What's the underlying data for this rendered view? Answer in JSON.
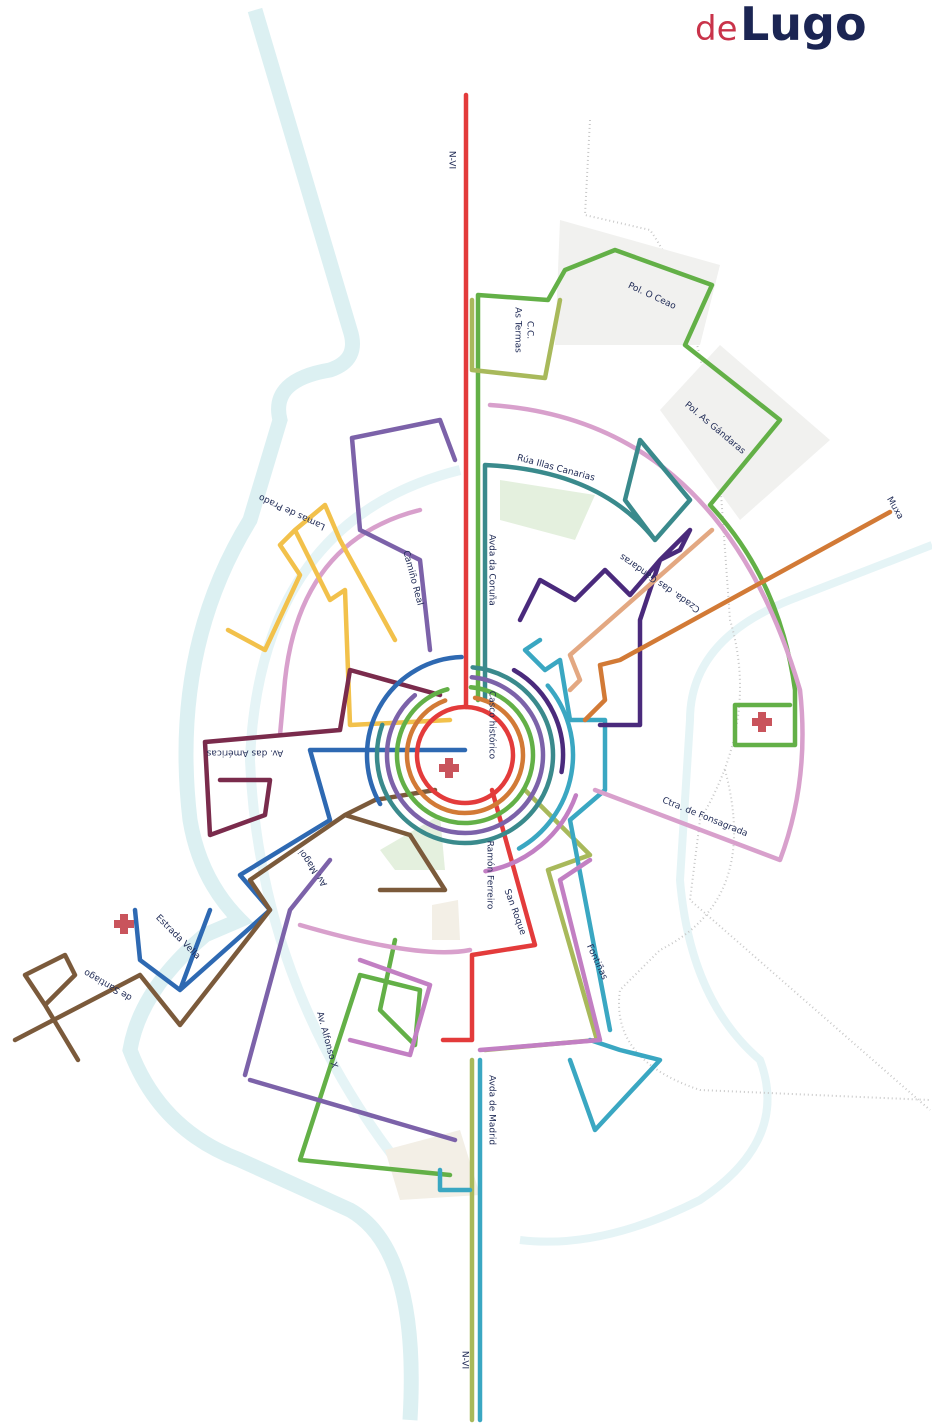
{
  "logo": {
    "prefix": "de",
    "name": "Lugo"
  },
  "labels": [
    "N-VI",
    "C.C.",
    "As Termas",
    "Pol. O Ceao",
    "Pol. As Gándaras",
    "Rúa Illas Canarias",
    "Muxa",
    "Lamas de Prado",
    "Camiño Real",
    "Avda da Coruña",
    "Czada. das Gándaras",
    "Casco histórico",
    "Av. das Américas",
    "Ctra. de Fonsagrada",
    "Ramón Ferreiro",
    "San Roque",
    "Av. Magoi",
    "Estrada Vella",
    "de Santiago",
    "Fontiñas",
    "Av. Alfonso X",
    "Avda de Madrid",
    "N-VI"
  ]
}
